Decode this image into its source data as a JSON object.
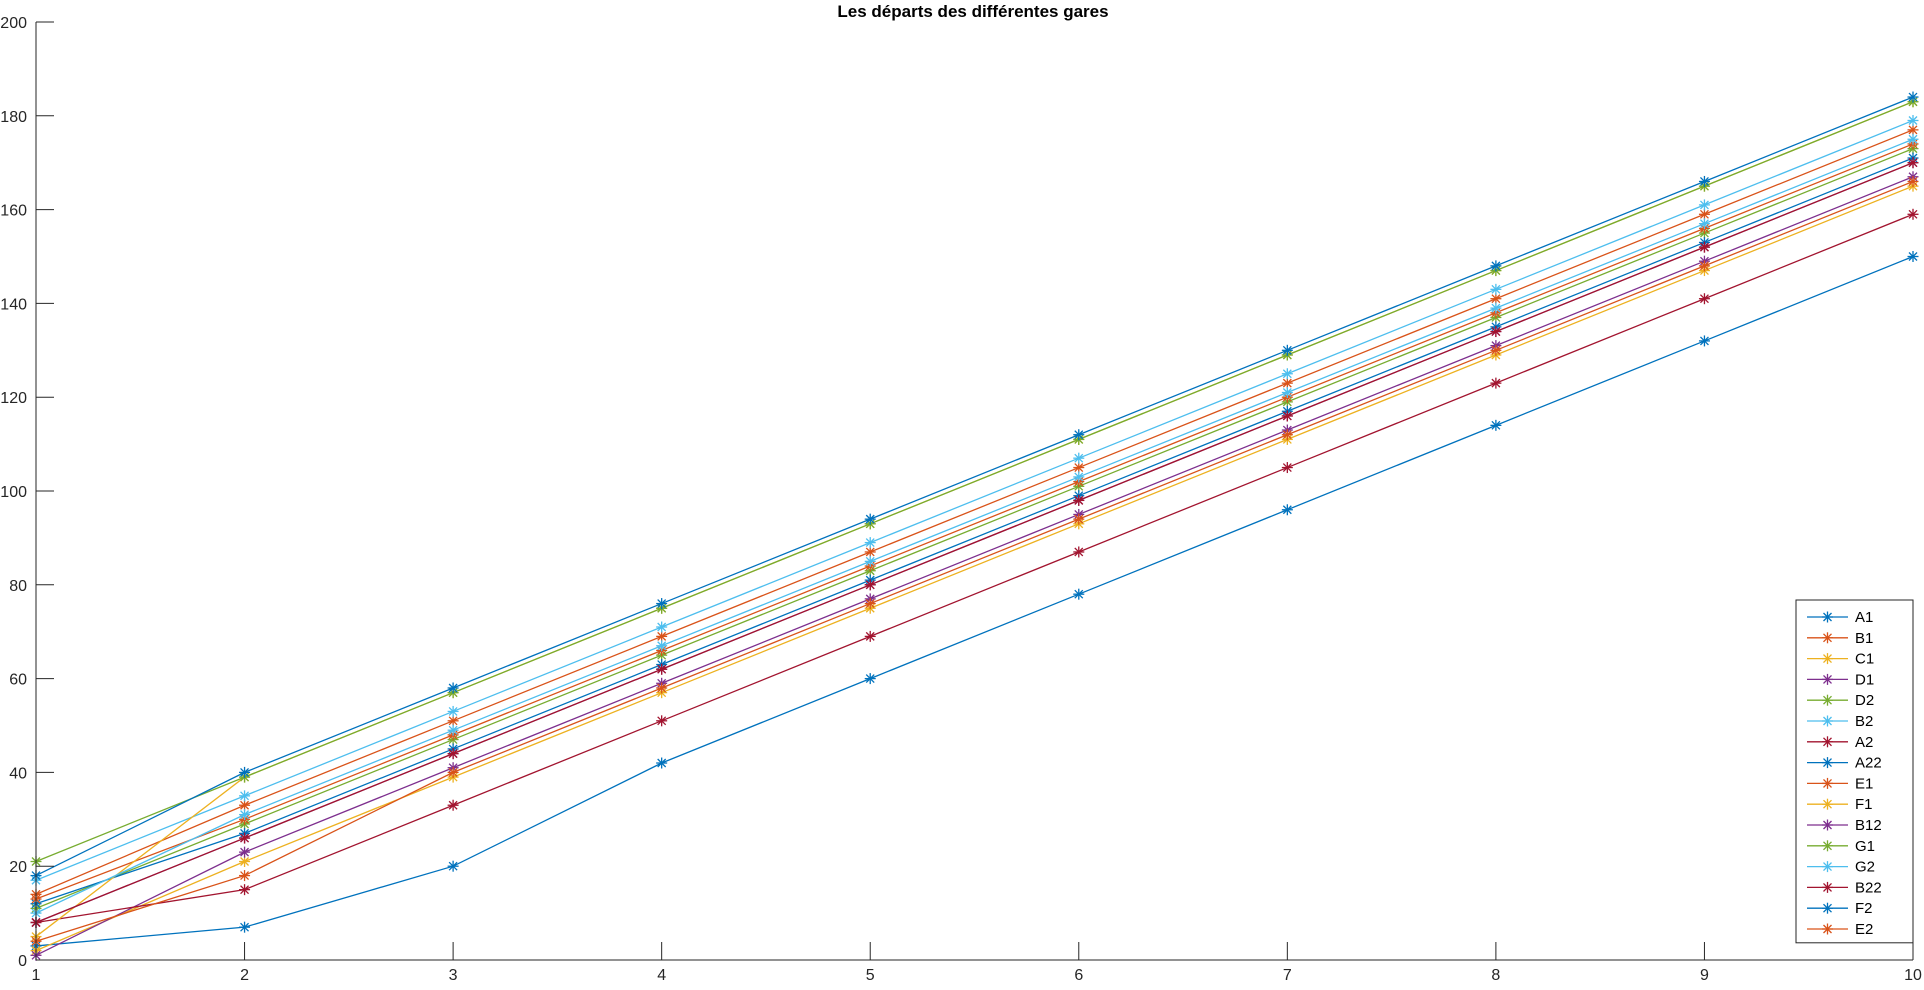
{
  "chart_data": {
    "type": "line",
    "title": "Les départs des différentes gares",
    "xlabel": "",
    "ylabel": "",
    "xlim": [
      1,
      10
    ],
    "ylim": [
      0,
      200
    ],
    "x": [
      1,
      2,
      3,
      4,
      5,
      6,
      7,
      8,
      9,
      10
    ],
    "xticks": [
      "1",
      "2",
      "3",
      "4",
      "5",
      "6",
      "7",
      "8",
      "9",
      "10"
    ],
    "yticks": [
      "0",
      "20",
      "40",
      "60",
      "80",
      "100",
      "120",
      "140",
      "160",
      "180",
      "200"
    ],
    "marker": "asterisk",
    "grid": false,
    "legend_position": "bottom-right",
    "series": [
      {
        "name": "A1",
        "color": "#0072BD",
        "values": [
          3,
          7,
          20,
          42,
          60,
          78,
          96,
          114,
          132,
          150
        ]
      },
      {
        "name": "B1",
        "color": "#D95319",
        "values": [
          14,
          33,
          51,
          69,
          87,
          105,
          123,
          141,
          159,
          177
        ]
      },
      {
        "name": "C1",
        "color": "#EDB120",
        "values": [
          2,
          21,
          39,
          57,
          75,
          93,
          111,
          129,
          147,
          165
        ]
      },
      {
        "name": "D1",
        "color": "#7E2F8E",
        "values": [
          1,
          23,
          41,
          59,
          77,
          95,
          113,
          131,
          149,
          167
        ]
      },
      {
        "name": "D2",
        "color": "#77AC30",
        "values": [
          11,
          29,
          47,
          65,
          83,
          101,
          119,
          137,
          155,
          173
        ]
      },
      {
        "name": "B2",
        "color": "#4DBEEE",
        "values": [
          17,
          35,
          53,
          71,
          89,
          107,
          125,
          143,
          161,
          179
        ]
      },
      {
        "name": "A2",
        "color": "#A2142F",
        "values": [
          8,
          15,
          33,
          51,
          69,
          87,
          105,
          123,
          141,
          159
        ]
      },
      {
        "name": "A22",
        "color": "#0072BD",
        "values": [
          12,
          27,
          45,
          63,
          81,
          99,
          117,
          135,
          153,
          171
        ]
      },
      {
        "name": "E1",
        "color": "#D95319",
        "values": [
          13,
          30,
          48,
          66,
          84,
          102,
          120,
          138,
          156,
          174
        ]
      },
      {
        "name": "F1",
        "color": "#EDB120",
        "values": [
          5,
          39,
          57,
          75,
          93,
          111,
          129,
          147,
          165,
          183
        ]
      },
      {
        "name": "B12",
        "color": "#7E2F8E",
        "values": [
          8,
          26,
          44,
          62,
          80,
          98,
          116,
          134,
          152,
          170
        ]
      },
      {
        "name": "G1",
        "color": "#77AC30",
        "values": [
          21,
          39,
          57,
          75,
          93,
          111,
          129,
          147,
          165,
          183
        ]
      },
      {
        "name": "G2",
        "color": "#4DBEEE",
        "values": [
          10,
          31,
          49,
          67,
          85,
          103,
          121,
          139,
          157,
          175
        ]
      },
      {
        "name": "B22",
        "color": "#A2142F",
        "values": [
          8,
          26,
          44,
          62,
          80,
          98,
          116,
          134,
          152,
          170
        ]
      },
      {
        "name": "F2",
        "color": "#0072BD",
        "values": [
          18,
          40,
          58,
          76,
          94,
          112,
          130,
          148,
          166,
          184
        ]
      },
      {
        "name": "E2",
        "color": "#D95319",
        "values": [
          4,
          18,
          40,
          58,
          76,
          94,
          112,
          130,
          148,
          166
        ]
      }
    ]
  }
}
